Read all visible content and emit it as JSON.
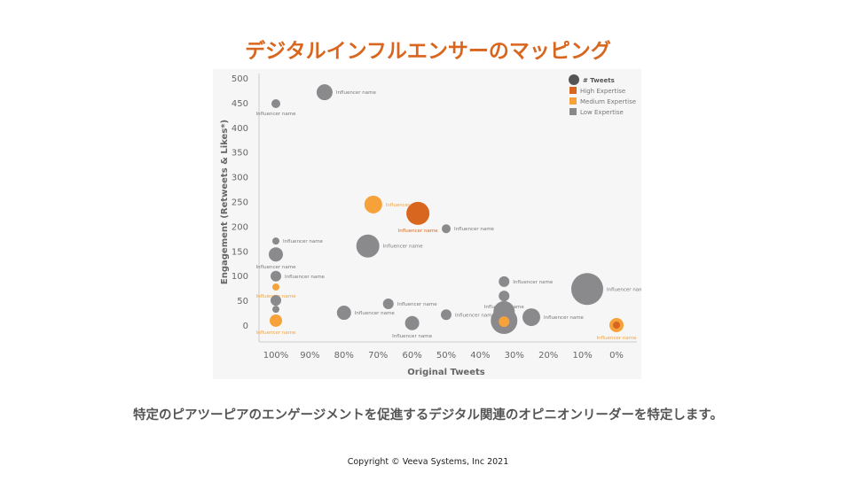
{
  "title": "デジタルインフルエンサーのマッピング",
  "subtitle": "特定のピアツーピアのエンゲージメントを促進するデジタル関連のオピニオンリーダーを特定します。",
  "copyright": "Copyright © Veeva Systems, Inc 2021",
  "chart_data": {
    "type": "scatter",
    "xlabel": "Original Tweets",
    "ylabel": "Engagement (Retweets & Likes*)",
    "xlim": [
      100,
      0
    ],
    "ylim": [
      0,
      500
    ],
    "xticks": [
      "100%",
      "90%",
      "80%",
      "70%",
      "60%",
      "50%",
      "40%",
      "30%",
      "20%",
      "10%",
      "0%"
    ],
    "yticks": [
      "500",
      "450",
      "400",
      "350",
      "300",
      "250",
      "200",
      "150",
      "100",
      "50",
      "0"
    ],
    "legend": {
      "size_label": "# Tweets",
      "items": [
        {
          "name": "High Expertise",
          "color": "#d9661f"
        },
        {
          "name": "Medium Expertise",
          "color": "#f7a13a"
        },
        {
          "name": "Low Expertise",
          "color": "#8a8a8c"
        }
      ],
      "position": "top-right"
    },
    "colors": {
      "high": "#d9661f",
      "medium": "#f7a13a",
      "low": "#8a8a8c"
    },
    "points": [
      {
        "x": 100,
        "y": 448,
        "size": 5,
        "level": "low",
        "label": "Influencer name"
      },
      {
        "x": 85.7,
        "y": 471,
        "size": 9,
        "level": "low",
        "label": "Influencer name"
      },
      {
        "x": 71.4,
        "y": 244,
        "size": 10,
        "level": "medium",
        "label": "Influencer name"
      },
      {
        "x": 58.3,
        "y": 226,
        "size": 13,
        "level": "high",
        "label": "Influencer name"
      },
      {
        "x": 50,
        "y": 195,
        "size": 5,
        "level": "low",
        "label": "Influencer name"
      },
      {
        "x": 100,
        "y": 170,
        "size": 4,
        "level": "low",
        "label": "Influencer name"
      },
      {
        "x": 100,
        "y": 143,
        "size": 8,
        "level": "low",
        "label": "Influencer name"
      },
      {
        "x": 73,
        "y": 160,
        "size": 13,
        "level": "low",
        "label": "Influencer name"
      },
      {
        "x": 100,
        "y": 99,
        "size": 6,
        "level": "low",
        "label": "Influencer name"
      },
      {
        "x": 100,
        "y": 77,
        "size": 4,
        "level": "medium",
        "label": "Influencer name"
      },
      {
        "x": 100,
        "y": 50,
        "size": 6,
        "level": "low",
        "label": ""
      },
      {
        "x": 100,
        "y": 32,
        "size": 4,
        "level": "low",
        "label": ""
      },
      {
        "x": 100,
        "y": 9,
        "size": 7,
        "level": "medium",
        "label": "Influencer name"
      },
      {
        "x": 80,
        "y": 25,
        "size": 8,
        "level": "low",
        "label": "Influencer name"
      },
      {
        "x": 67,
        "y": 43,
        "size": 6,
        "level": "low",
        "label": "Influencer name"
      },
      {
        "x": 60,
        "y": 4,
        "size": 8,
        "level": "low",
        "label": "Influencer name"
      },
      {
        "x": 50,
        "y": 21,
        "size": 6,
        "level": "low",
        "label": "Influencer name"
      },
      {
        "x": 33,
        "y": 88,
        "size": 6,
        "level": "low",
        "label": "Influencer name"
      },
      {
        "x": 33,
        "y": 59,
        "size": 6,
        "level": "low",
        "label": "Influencer name"
      },
      {
        "x": 33,
        "y": 27,
        "size": 12,
        "level": "low",
        "label": ""
      },
      {
        "x": 33,
        "y": 9,
        "size": 15,
        "level": "low",
        "label": ""
      },
      {
        "x": 33,
        "y": 7,
        "size": 6,
        "level": "medium",
        "label": ""
      },
      {
        "x": 25,
        "y": 16,
        "size": 10,
        "level": "low",
        "label": "Influencer name"
      },
      {
        "x": 8.6,
        "y": 73,
        "size": 18,
        "level": "low",
        "label": "Influencer name"
      },
      {
        "x": 0,
        "y": 0,
        "size": 8,
        "level": "medium",
        "label": "Influencer name"
      },
      {
        "x": 0,
        "y": 0,
        "size": 4,
        "level": "high",
        "label": ""
      }
    ]
  }
}
